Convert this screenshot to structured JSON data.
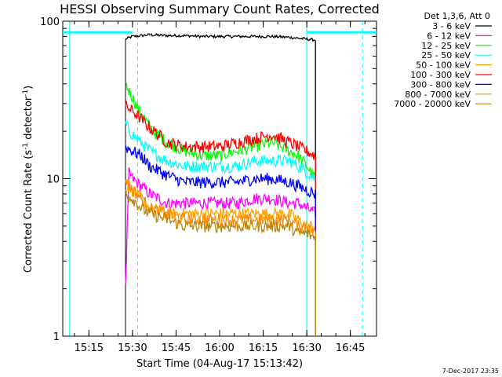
{
  "chart_data": {
    "type": "line",
    "title": "HESSI Observing Summary Count Rates, Corrected",
    "xlabel": "Start Time (04-Aug-17 15:13:42)",
    "ylabel": "Corrected Count Rate (s",
    "ylabel_sup": "-1",
    "ylabel_tail": " detector",
    "ylabel_tail_sup": "-1",
    "ylabel_end": ")",
    "yscale": "log",
    "ylim": [
      1,
      100
    ],
    "xlim_minutes": [
      15.1,
      16.9
    ],
    "x_ticks": [
      {
        "label": "15:15",
        "hours": 15.25
      },
      {
        "label": "15:30",
        "hours": 15.5
      },
      {
        "label": "15:45",
        "hours": 15.75
      },
      {
        "label": "16:00",
        "hours": 16.0
      },
      {
        "label": "16:15",
        "hours": 16.25
      },
      {
        "label": "16:30",
        "hours": 16.5
      },
      {
        "label": "16:45",
        "hours": 16.75
      }
    ],
    "y_ticks": [
      {
        "label": "1",
        "value": 1
      },
      {
        "label": "10",
        "value": 10
      },
      {
        "label": "100",
        "value": 100
      }
    ],
    "legend_header": "Det 1,3,6, Att 0",
    "legend_placement": "right",
    "series": [
      {
        "name": "3 - 6 keV",
        "color": "#000000",
        "x": [
          15.46,
          15.5,
          15.55,
          15.6,
          15.7,
          15.8,
          15.9,
          16.0,
          16.1,
          16.2,
          16.3,
          16.4,
          16.45,
          16.5,
          16.55
        ],
        "y": [
          77,
          80,
          81,
          82,
          81,
          81,
          80,
          80,
          80,
          80,
          80,
          79,
          78,
          77,
          76
        ]
      },
      {
        "name": "6 - 12 keV",
        "color": "#ff00ff",
        "x": [
          15.46,
          15.48,
          15.5,
          15.55,
          15.6,
          15.7,
          15.8,
          15.9,
          16.0,
          16.1,
          16.2,
          16.3,
          16.4,
          16.45,
          16.5,
          16.55
        ],
        "y": [
          2,
          11,
          10,
          9,
          8,
          7,
          7,
          7,
          7,
          7,
          7.5,
          7.5,
          7,
          7,
          6.5,
          6
        ]
      },
      {
        "name": "12 - 25 keV",
        "color": "#00ff00",
        "x": [
          15.46,
          15.5,
          15.53,
          15.58,
          15.62,
          15.7,
          15.8,
          15.9,
          16.0,
          16.1,
          16.2,
          16.3,
          16.35,
          16.4,
          16.45,
          16.5,
          16.55
        ],
        "y": [
          40,
          33,
          28,
          23,
          20,
          17,
          15,
          14,
          14,
          15,
          16,
          17,
          16,
          15,
          14,
          12,
          10
        ]
      },
      {
        "name": "25 - 50 keV",
        "color": "#00ffff",
        "x": [
          15.46,
          15.5,
          15.55,
          15.6,
          15.7,
          15.8,
          15.9,
          16.0,
          16.1,
          16.2,
          16.3,
          16.4,
          16.45,
          16.5,
          16.55
        ],
        "y": [
          22,
          19,
          17,
          15,
          13,
          12,
          12,
          12,
          12,
          13,
          13,
          13,
          12,
          11,
          10
        ]
      },
      {
        "name": "50 - 100 keV",
        "color": "#ffa500",
        "x": [
          15.46,
          15.5,
          15.55,
          15.6,
          15.7,
          15.8,
          15.9,
          16.0,
          16.1,
          16.2,
          16.3,
          16.4,
          16.45,
          16.5,
          16.55
        ],
        "y": [
          9,
          8.5,
          7.5,
          6.5,
          6,
          6,
          6,
          6,
          6,
          6,
          6,
          6,
          5.5,
          5,
          5
        ]
      },
      {
        "name": "100 - 300 keV",
        "color": "#ff0000",
        "x": [
          15.46,
          15.5,
          15.55,
          15.6,
          15.65,
          15.7,
          15.8,
          15.9,
          16.0,
          16.1,
          16.2,
          16.3,
          16.35,
          16.4,
          16.45,
          16.5,
          16.55
        ],
        "y": [
          29,
          27,
          24,
          21,
          19,
          17,
          16,
          16,
          16,
          17,
          18,
          19,
          18,
          17,
          16,
          15,
          14
        ]
      },
      {
        "name": "300 - 800 keV",
        "color": "#0000ff",
        "x": [
          15.46,
          15.5,
          15.55,
          15.6,
          15.7,
          15.8,
          15.9,
          16.0,
          16.1,
          16.2,
          16.3,
          16.4,
          16.45,
          16.5,
          16.55
        ],
        "y": [
          16,
          15,
          14,
          12,
          10.5,
          9.5,
          9.5,
          9.5,
          9.5,
          10,
          10,
          9.5,
          9,
          8.5,
          8
        ]
      },
      {
        "name": "800 - 7000 keV",
        "color": "#ff8c00",
        "x": [
          15.46,
          15.5,
          15.55,
          15.6,
          15.7,
          15.8,
          15.9,
          16.0,
          16.1,
          16.2,
          16.3,
          16.4,
          16.45,
          16.5,
          16.55
        ],
        "y": [
          10,
          8.5,
          7.5,
          6.5,
          6,
          5.5,
          5.5,
          5.5,
          5.5,
          5.5,
          5.5,
          5.5,
          5,
          5,
          4.5
        ]
      },
      {
        "name": "7000 - 20000 keV",
        "color": "#b8860b",
        "x": [
          15.46,
          15.5,
          15.55,
          15.6,
          15.7,
          15.8,
          15.9,
          16.0,
          16.1,
          16.2,
          16.3,
          16.4,
          16.45,
          16.5,
          16.55
        ],
        "y": [
          8,
          7.5,
          6.5,
          6,
          5.5,
          5,
          5,
          5,
          5,
          5,
          5,
          5,
          4.5,
          4.5,
          4.2
        ]
      }
    ],
    "flags": {
      "color": "#00ffff",
      "flag_level": 85,
      "solid_lines_hours": [
        15.14,
        16.5
      ],
      "dashed_lines_hours": [
        15.53,
        16.82
      ]
    }
  },
  "footer": {
    "timestamp": "7-Dec-2017 23:35"
  }
}
